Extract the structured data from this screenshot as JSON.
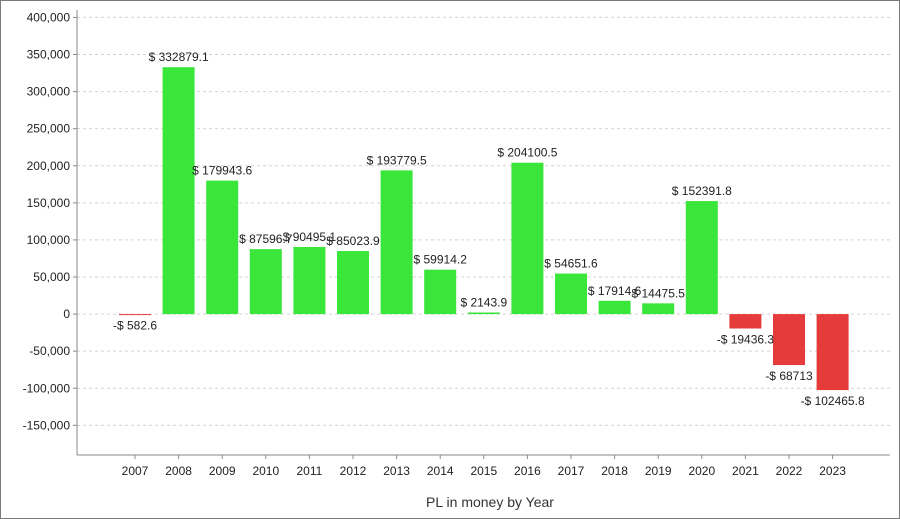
{
  "chart_data": {
    "type": "bar",
    "xlabel": "PL in money by Year",
    "ylabel": "",
    "ylim": [
      -190000,
      410000
    ],
    "yticks": [
      400000,
      350000,
      300000,
      250000,
      200000,
      150000,
      100000,
      50000,
      0,
      -50000,
      -100000,
      -150000
    ],
    "ytick_labels": [
      "400,000",
      "350,000",
      "300,000",
      "250,000",
      "200,000",
      "150,000",
      "100,000",
      "50,000",
      "0",
      "-50,000",
      "-100,000",
      "-150,000"
    ],
    "grid": true,
    "legend": "none",
    "colors": {
      "positive": "#3be63b",
      "negative": "#e63b3b"
    },
    "categories": [
      "2007",
      "2008",
      "2009",
      "2010",
      "2011",
      "2012",
      "2013",
      "2014",
      "2015",
      "2016",
      "2017",
      "2018",
      "2019",
      "2020",
      "2021",
      "2022",
      "2023"
    ],
    "values": [
      -582.6,
      332879.1,
      179943.6,
      87596.7,
      90495.1,
      85023.9,
      193779.5,
      59914.2,
      2143.9,
      204100.5,
      54651.6,
      17914.6,
      14475.5,
      152391.8,
      -19436.3,
      -68713,
      -102465.8
    ],
    "data_labels": [
      "-$ 582.6",
      "$ 332879.1",
      "$ 179943.6",
      "$ 87596.7",
      "$ 90495.1",
      "$ 85023.9",
      "$ 193779.5",
      "$ 59914.2",
      "$ 2143.9",
      "$ 204100.5",
      "$ 54651.6",
      "$ 17914.6",
      "$ 14475.5",
      "$ 152391.8",
      "-$ 19436.3",
      "-$ 68713",
      "-$ 102465.8"
    ]
  }
}
